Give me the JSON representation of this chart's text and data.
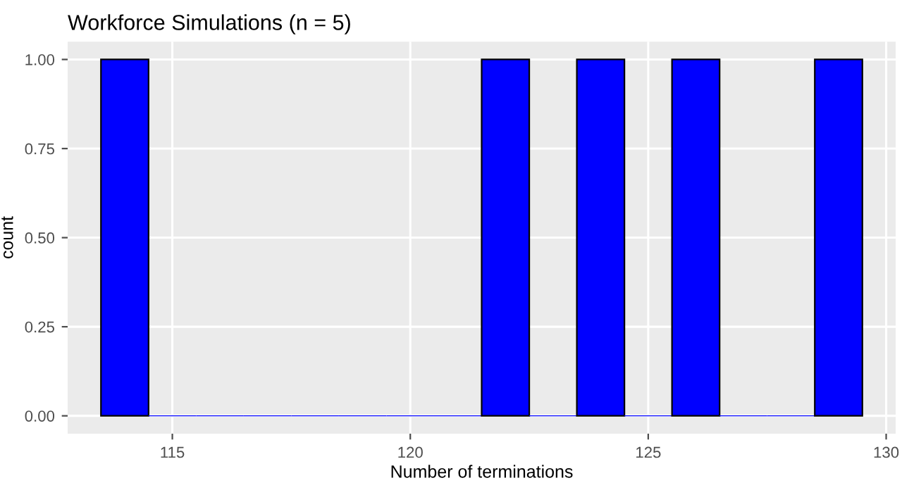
{
  "chart_data": {
    "type": "histogram",
    "title": "Workforce Simulations (n = 5)",
    "xlabel": "Number of terminations",
    "ylabel": "count",
    "bins": [
      113.5,
      114.5,
      115.5,
      116.5,
      117.5,
      118.5,
      119.5,
      120.5,
      121.5,
      122.5,
      123.5,
      124.5,
      125.5,
      126.5,
      127.5,
      128.5,
      129.5
    ],
    "values": [
      1,
      0,
      0,
      0,
      0,
      0,
      0,
      0,
      1,
      0,
      1,
      0,
      1,
      0,
      0,
      1
    ],
    "color": "#0000ff",
    "xlim": [
      112.8,
      130.2
    ],
    "xticks": [
      115,
      120,
      125,
      130
    ],
    "ylim": [
      -0.05,
      1.05
    ],
    "yticks": [
      {
        "value": 0,
        "label": "0.00"
      },
      {
        "value": 0.25,
        "label": "0.25"
      },
      {
        "value": 0.5,
        "label": "0.50"
      },
      {
        "value": 0.75,
        "label": "0.75"
      },
      {
        "value": 1,
        "label": "1.00"
      }
    ],
    "grid": true
  }
}
